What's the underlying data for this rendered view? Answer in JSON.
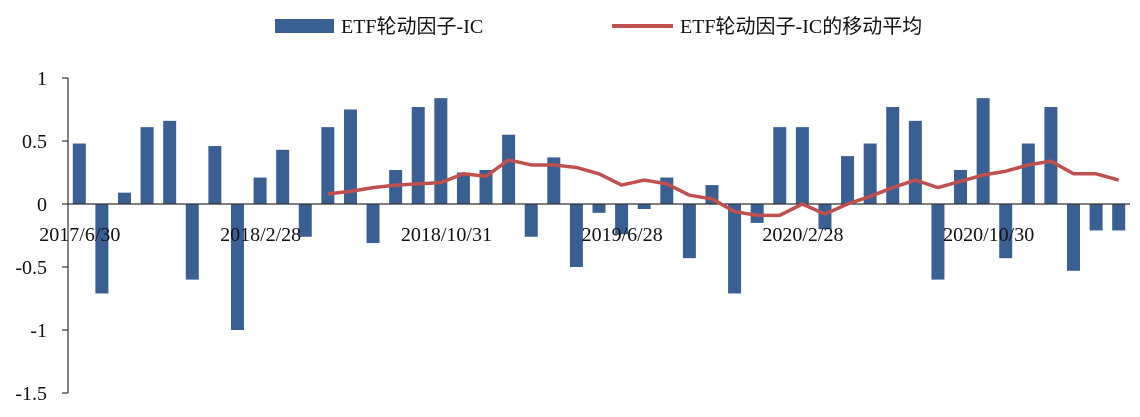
{
  "chart_data": {
    "type": "bar",
    "title": "",
    "xlabel": "",
    "ylabel": "",
    "ylim": [
      -1.5,
      1
    ],
    "yticks": [
      1,
      0.5,
      0,
      -0.5,
      -1,
      -1.5
    ],
    "ytick_labels": [
      "1",
      "0.5",
      "0",
      "-0.5",
      "-1",
      "-1.5"
    ],
    "xtick_labels": [
      {
        "index": 0,
        "label": "2017/6/30"
      },
      {
        "index": 8,
        "label": "2018/2/28"
      },
      {
        "index": 16,
        "label": "2018/10/31"
      },
      {
        "index": 24,
        "label": "2019/6/28"
      },
      {
        "index": 32,
        "label": "2020/2/28"
      },
      {
        "index": 40,
        "label": "2020/10/30"
      }
    ],
    "legend_position": "top",
    "series": [
      {
        "name": "ETF轮动因子-IC",
        "type": "bar",
        "color": "#3A5F93",
        "values": [
          0.48,
          -0.71,
          0.09,
          0.61,
          0.66,
          -0.6,
          0.46,
          -1.0,
          0.21,
          0.43,
          -0.26,
          0.61,
          0.75,
          -0.31,
          0.27,
          0.77,
          0.84,
          0.25,
          0.27,
          0.55,
          -0.26,
          0.37,
          -0.5,
          -0.07,
          -0.24,
          -0.04,
          0.21,
          -0.43,
          0.15,
          -0.71,
          -0.15,
          0.61,
          0.61,
          -0.2,
          0.38,
          0.48,
          0.77,
          0.66,
          -0.6,
          0.27,
          0.84,
          -0.43,
          0.48,
          0.77,
          -0.53,
          -0.21,
          -0.21
        ]
      },
      {
        "name": "ETF轮动因子-IC的移动平均",
        "type": "line",
        "color": "#C0504D",
        "values": [
          null,
          null,
          null,
          null,
          null,
          null,
          null,
          null,
          null,
          null,
          null,
          0.08,
          0.1,
          0.13,
          0.15,
          0.16,
          0.17,
          0.24,
          0.22,
          0.35,
          0.31,
          0.31,
          0.29,
          0.24,
          0.15,
          0.19,
          0.16,
          0.07,
          0.04,
          -0.06,
          -0.09,
          -0.09,
          0.0,
          -0.08,
          0.0,
          0.06,
          0.13,
          0.19,
          0.13,
          0.18,
          0.23,
          0.26,
          0.31,
          0.34,
          0.24,
          0.24,
          0.19
        ]
      }
    ]
  }
}
